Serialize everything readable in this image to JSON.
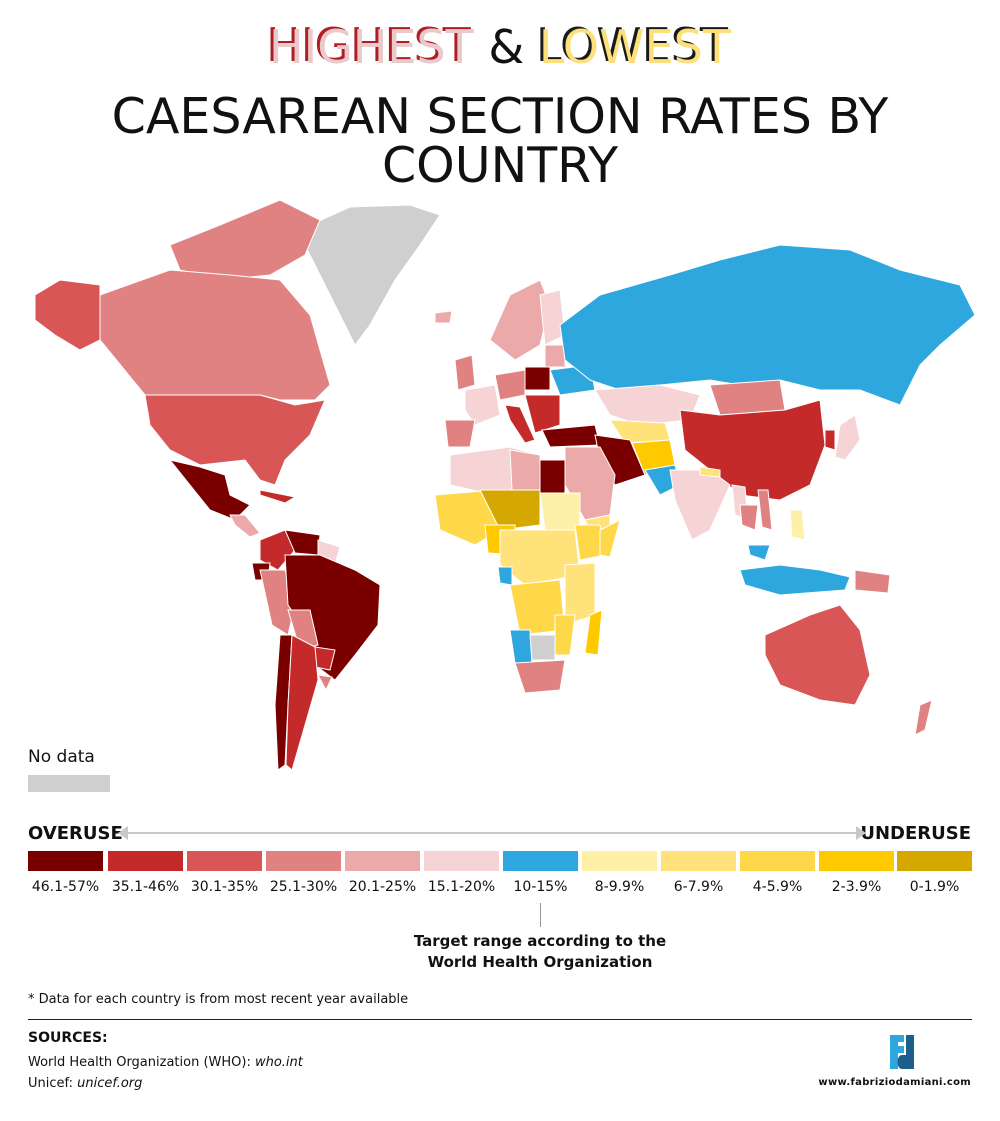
{
  "title": {
    "highest": "HIGHEST",
    "amp": "&",
    "lowest": "LOWEST",
    "line2": "CAESAREAN SECTION RATES BY COUNTRY"
  },
  "colors": {
    "r46_57": "#7a0000",
    "r35_46": "#c42a2a",
    "r30_35": "#d95656",
    "r25_30": "#e08282",
    "r20_25": "#eca9a9",
    "r15_20": "#f6d4d6",
    "r10_15": "#2ea7df",
    "r8_10": "#fff0a8",
    "r6_8": "#ffe27a",
    "r4_6": "#ffd84a",
    "r2_4": "#ffc900",
    "r0_2": "#d4a800",
    "nodata": "#cfcfcf"
  },
  "legend": {
    "no_data": "No data",
    "overuse": "OVERUSE",
    "underuse": "UNDERUSE",
    "items": [
      {
        "label": "46.1-57%",
        "color": "#7a0000"
      },
      {
        "label": "35.1-46%",
        "color": "#c42a2a"
      },
      {
        "label": "30.1-35%",
        "color": "#d95656"
      },
      {
        "label": "25.1-30%",
        "color": "#e08282"
      },
      {
        "label": "20.1-25%",
        "color": "#eca9a9"
      },
      {
        "label": "15.1-20%",
        "color": "#f6d4d6"
      },
      {
        "label": "10-15%",
        "color": "#2ea7df"
      },
      {
        "label": "8-9.9%",
        "color": "#fff0a8"
      },
      {
        "label": "6-7.9%",
        "color": "#ffe27a"
      },
      {
        "label": "4-5.9%",
        "color": "#ffd84a"
      },
      {
        "label": "2-3.9%",
        "color": "#ffc900"
      },
      {
        "label": "0-1.9%",
        "color": "#d4a800"
      }
    ],
    "target_note_1": "Target range according to the",
    "target_note_2": "World Health Organization"
  },
  "footnote": "* Data for each country is from most recent year available",
  "sources": {
    "title": "SOURCES:",
    "who_prefix": "World Health Organization (WHO): ",
    "who_link": "who.int",
    "unicef_prefix": "Unicef: ",
    "unicef_link": "unicef.org"
  },
  "website": "www.fabriziodamiani.com"
}
